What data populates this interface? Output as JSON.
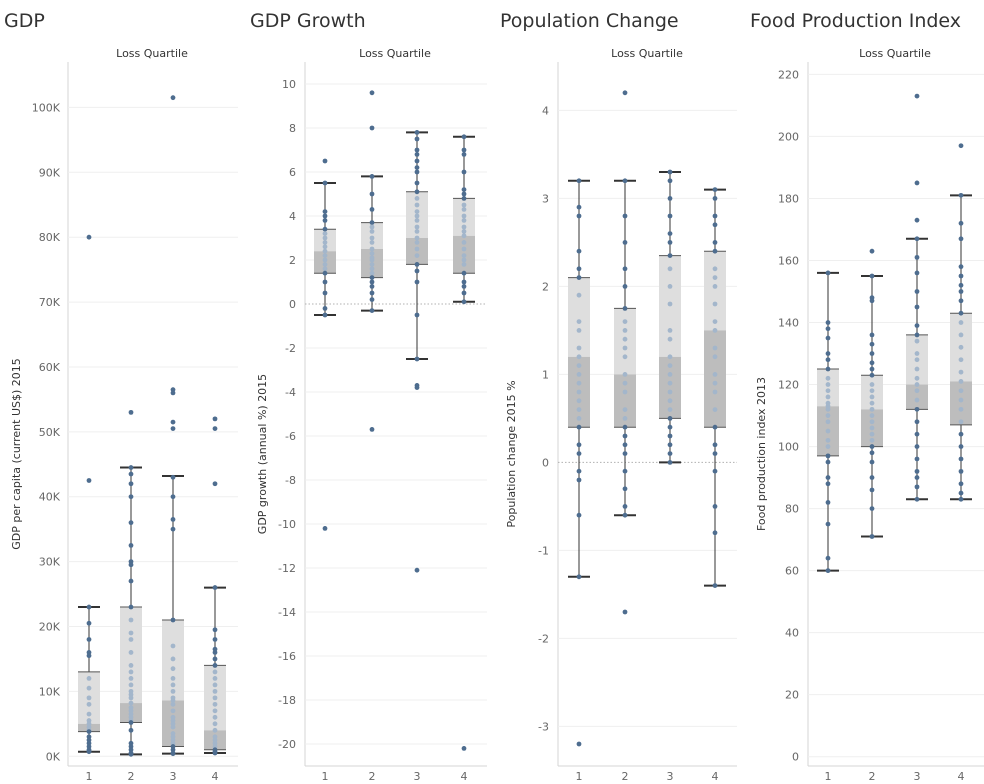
{
  "chart_data": [
    {
      "type": "box",
      "title": "GDP",
      "header": "Loss Quartile",
      "ylabel": "GDP per capita (current US$) 2015",
      "categories": [
        "1",
        "2",
        "3",
        "4"
      ],
      "ylim": [
        -1500,
        107000
      ],
      "yticks": [
        0,
        10000,
        20000,
        30000,
        40000,
        50000,
        60000,
        70000,
        80000,
        90000,
        100000
      ],
      "ytick_labels": [
        "0K",
        "10K",
        "20K",
        "30K",
        "40K",
        "50K",
        "60K",
        "70K",
        "80K",
        "90K",
        "100K"
      ],
      "zero_line": false,
      "boxes": [
        {
          "whisker_low": 700,
          "q1": 3800,
          "median": 5000,
          "q3": 13000,
          "whisker_high": 23000
        },
        {
          "whisker_low": 300,
          "q1": 5200,
          "median": 8200,
          "q3": 23000,
          "whisker_high": 44500
        },
        {
          "whisker_low": 400,
          "q1": 1500,
          "median": 8600,
          "q3": 21000,
          "whisker_high": 43200
        },
        {
          "whisker_low": 500,
          "q1": 1000,
          "median": 4000,
          "q3": 14000,
          "whisker_high": 26000
        }
      ],
      "points": [
        [
          80000,
          42500,
          23000,
          20500,
          18000,
          16000,
          15500,
          12000,
          10500,
          9000,
          8000,
          6500,
          5500,
          5000,
          4500,
          4000,
          3800,
          3000,
          2500,
          2000,
          1500,
          1000,
          800,
          700
        ],
        [
          53000,
          44500,
          43500,
          42000,
          40000,
          36000,
          32500,
          30000,
          29500,
          27000,
          23000,
          21000,
          19000,
          18000,
          16000,
          14000,
          13000,
          12000,
          11000,
          10000,
          9500,
          9000,
          8200,
          7500,
          7000,
          6500,
          6000,
          5500,
          5200,
          4000,
          2000,
          1500,
          1000,
          500,
          300
        ],
        [
          101500,
          56500,
          56000,
          51500,
          50500,
          43000,
          40000,
          36500,
          35000,
          21000,
          17000,
          15000,
          13500,
          12000,
          11000,
          10000,
          9000,
          8600,
          8000,
          7000,
          6000,
          5500,
          5000,
          4500,
          3500,
          3000,
          2500,
          2000,
          1500,
          1000,
          500,
          400
        ],
        [
          52000,
          50500,
          42000,
          26000,
          19500,
          18000,
          16500,
          16000,
          15000,
          14000,
          13000,
          12000,
          11000,
          10000,
          9000,
          8000,
          7000,
          6000,
          5000,
          4000,
          3000,
          2500,
          2000,
          1500,
          1000,
          700,
          500
        ]
      ]
    },
    {
      "type": "box",
      "title": "GDP Growth",
      "header": "Loss Quartile",
      "ylabel": "GDP growth (annual %) 2015",
      "categories": [
        "1",
        "2",
        "3",
        "4"
      ],
      "ylim": [
        -21,
        11
      ],
      "yticks": [
        10,
        8,
        6,
        4,
        2,
        0,
        -2,
        -4,
        -6,
        -8,
        -10,
        -12,
        -14,
        -16,
        -18,
        -20
      ],
      "ytick_labels": [
        "10",
        "8",
        "6",
        "4",
        "2",
        "0",
        "-2",
        "-4",
        "-6",
        "-8",
        "-10",
        "-12",
        "-14",
        "-16",
        "-18",
        "-20"
      ],
      "zero_line": true,
      "boxes": [
        {
          "whisker_low": -0.5,
          "q1": 1.4,
          "median": 2.4,
          "q3": 3.4,
          "whisker_high": 5.5
        },
        {
          "whisker_low": -0.3,
          "q1": 1.2,
          "median": 2.5,
          "q3": 3.7,
          "whisker_high": 5.8
        },
        {
          "whisker_low": -2.5,
          "q1": 1.8,
          "median": 3.0,
          "q3": 5.1,
          "whisker_high": 7.8
        },
        {
          "whisker_low": 0.1,
          "q1": 1.4,
          "median": 3.1,
          "q3": 4.8,
          "whisker_high": 7.6
        }
      ],
      "points": [
        [
          6.5,
          5.5,
          4.2,
          4.0,
          3.8,
          3.4,
          3.2,
          3.0,
          2.8,
          2.6,
          2.4,
          2.2,
          2.0,
          1.8,
          1.6,
          1.4,
          1.0,
          0.5,
          -0.2,
          -0.5,
          -10.2
        ],
        [
          9.6,
          8.0,
          5.8,
          5.0,
          4.3,
          3.7,
          3.5,
          3.3,
          3.0,
          2.8,
          2.5,
          2.3,
          2.1,
          2.0,
          1.8,
          1.6,
          1.4,
          1.2,
          1.0,
          0.8,
          0.5,
          0.2,
          -0.3,
          -5.7
        ],
        [
          7.8,
          7.5,
          7.0,
          6.8,
          6.5,
          6.2,
          6.0,
          5.5,
          5.1,
          4.8,
          4.5,
          4.2,
          4.0,
          3.8,
          3.5,
          3.3,
          3.0,
          2.8,
          2.5,
          2.2,
          1.8,
          1.5,
          1.0,
          -0.5,
          -2.5,
          -3.7,
          -3.8,
          -12.1
        ],
        [
          7.6,
          7.0,
          6.8,
          6.0,
          5.2,
          5.0,
          4.8,
          4.5,
          4.3,
          4.0,
          3.8,
          3.5,
          3.3,
          3.1,
          2.8,
          2.5,
          2.2,
          2.0,
          1.8,
          1.4,
          1.0,
          0.8,
          0.5,
          0.1,
          -20.2
        ]
      ]
    },
    {
      "type": "box",
      "title": "Population Change",
      "header": "Loss Quartile",
      "ylabel": "Population change 2015 %",
      "categories": [
        "1",
        "2",
        "3",
        "4"
      ],
      "ylim": [
        -3.45,
        4.55
      ],
      "yticks": [
        4,
        3,
        2,
        1,
        0,
        -1,
        -2,
        -3
      ],
      "ytick_labels": [
        "4",
        "3",
        "2",
        "1",
        "0",
        "-1",
        "-2",
        "-3"
      ],
      "zero_line": true,
      "boxes": [
        {
          "whisker_low": -1.3,
          "q1": 0.4,
          "median": 1.2,
          "q3": 2.1,
          "whisker_high": 3.2
        },
        {
          "whisker_low": -0.6,
          "q1": 0.4,
          "median": 1.0,
          "q3": 1.75,
          "whisker_high": 3.2
        },
        {
          "whisker_low": 0.0,
          "q1": 0.5,
          "median": 1.2,
          "q3": 2.35,
          "whisker_high": 3.3
        },
        {
          "whisker_low": -1.4,
          "q1": 0.4,
          "median": 1.5,
          "q3": 2.4,
          "whisker_high": 3.1
        }
      ],
      "points": [
        [
          3.2,
          2.9,
          2.8,
          2.4,
          2.2,
          2.1,
          1.9,
          1.6,
          1.5,
          1.3,
          1.2,
          1.1,
          1.0,
          0.9,
          0.8,
          0.7,
          0.6,
          0.5,
          0.4,
          0.2,
          0.1,
          -0.1,
          -0.2,
          -0.6,
          -1.3,
          -3.2
        ],
        [
          4.2,
          3.2,
          2.8,
          2.5,
          2.2,
          2.0,
          1.75,
          1.6,
          1.5,
          1.4,
          1.3,
          1.2,
          1.0,
          0.9,
          0.8,
          0.6,
          0.5,
          0.4,
          0.3,
          0.2,
          0.1,
          -0.1,
          -0.3,
          -0.5,
          -0.6,
          -1.7
        ],
        [
          3.3,
          3.2,
          3.0,
          2.8,
          2.6,
          2.5,
          2.35,
          2.2,
          2.0,
          1.8,
          1.5,
          1.4,
          1.2,
          1.1,
          1.0,
          0.9,
          0.8,
          0.7,
          0.6,
          0.5,
          0.4,
          0.3,
          0.2,
          0.1,
          0.0
        ],
        [
          3.1,
          3.0,
          2.8,
          2.7,
          2.5,
          2.4,
          2.2,
          2.1,
          2.0,
          1.8,
          1.6,
          1.5,
          1.3,
          1.2,
          1.0,
          0.9,
          0.8,
          0.6,
          0.4,
          0.2,
          0.1,
          -0.1,
          -0.5,
          -0.8,
          -1.4
        ]
      ]
    },
    {
      "type": "box",
      "title": "Food Production Index",
      "header": "Loss Quartile",
      "ylabel": "Food production index 2013",
      "categories": [
        "1",
        "2",
        "3",
        "4"
      ],
      "ylim": [
        -3,
        224
      ],
      "yticks": [
        0,
        20,
        40,
        60,
        80,
        100,
        120,
        140,
        160,
        180,
        200,
        220
      ],
      "ytick_labels": [
        "0",
        "20",
        "40",
        "60",
        "80",
        "100",
        "120",
        "140",
        "160",
        "180",
        "200",
        "220"
      ],
      "zero_line": false,
      "boxes": [
        {
          "whisker_low": 60,
          "q1": 97,
          "median": 113,
          "q3": 125,
          "whisker_high": 156
        },
        {
          "whisker_low": 71,
          "q1": 100,
          "median": 112,
          "q3": 123,
          "whisker_high": 155
        },
        {
          "whisker_low": 83,
          "q1": 112,
          "median": 120,
          "q3": 136,
          "whisker_high": 167
        },
        {
          "whisker_low": 83,
          "q1": 107,
          "median": 121,
          "q3": 143,
          "whisker_high": 181
        }
      ],
      "points": [
        [
          156,
          140,
          138,
          135,
          130,
          128,
          125,
          122,
          120,
          118,
          116,
          114,
          113,
          112,
          110,
          108,
          105,
          102,
          100,
          97,
          95,
          90,
          88,
          82,
          75,
          64,
          60
        ],
        [
          163,
          155,
          148,
          147,
          136,
          133,
          130,
          127,
          125,
          123,
          120,
          118,
          116,
          114,
          112,
          110,
          108,
          106,
          104,
          102,
          100,
          98,
          95,
          90,
          86,
          80,
          71
        ],
        [
          213,
          185,
          173,
          167,
          161,
          156,
          150,
          145,
          139,
          136,
          134,
          130,
          128,
          125,
          122,
          120,
          118,
          115,
          112,
          108,
          104,
          100,
          96,
          92,
          90,
          87,
          83
        ],
        [
          197,
          181,
          172,
          167,
          158,
          155,
          152,
          150,
          147,
          143,
          140,
          136,
          132,
          128,
          124,
          121,
          118,
          115,
          112,
          108,
          104,
          100,
          96,
          92,
          88,
          85,
          83
        ]
      ]
    }
  ]
}
